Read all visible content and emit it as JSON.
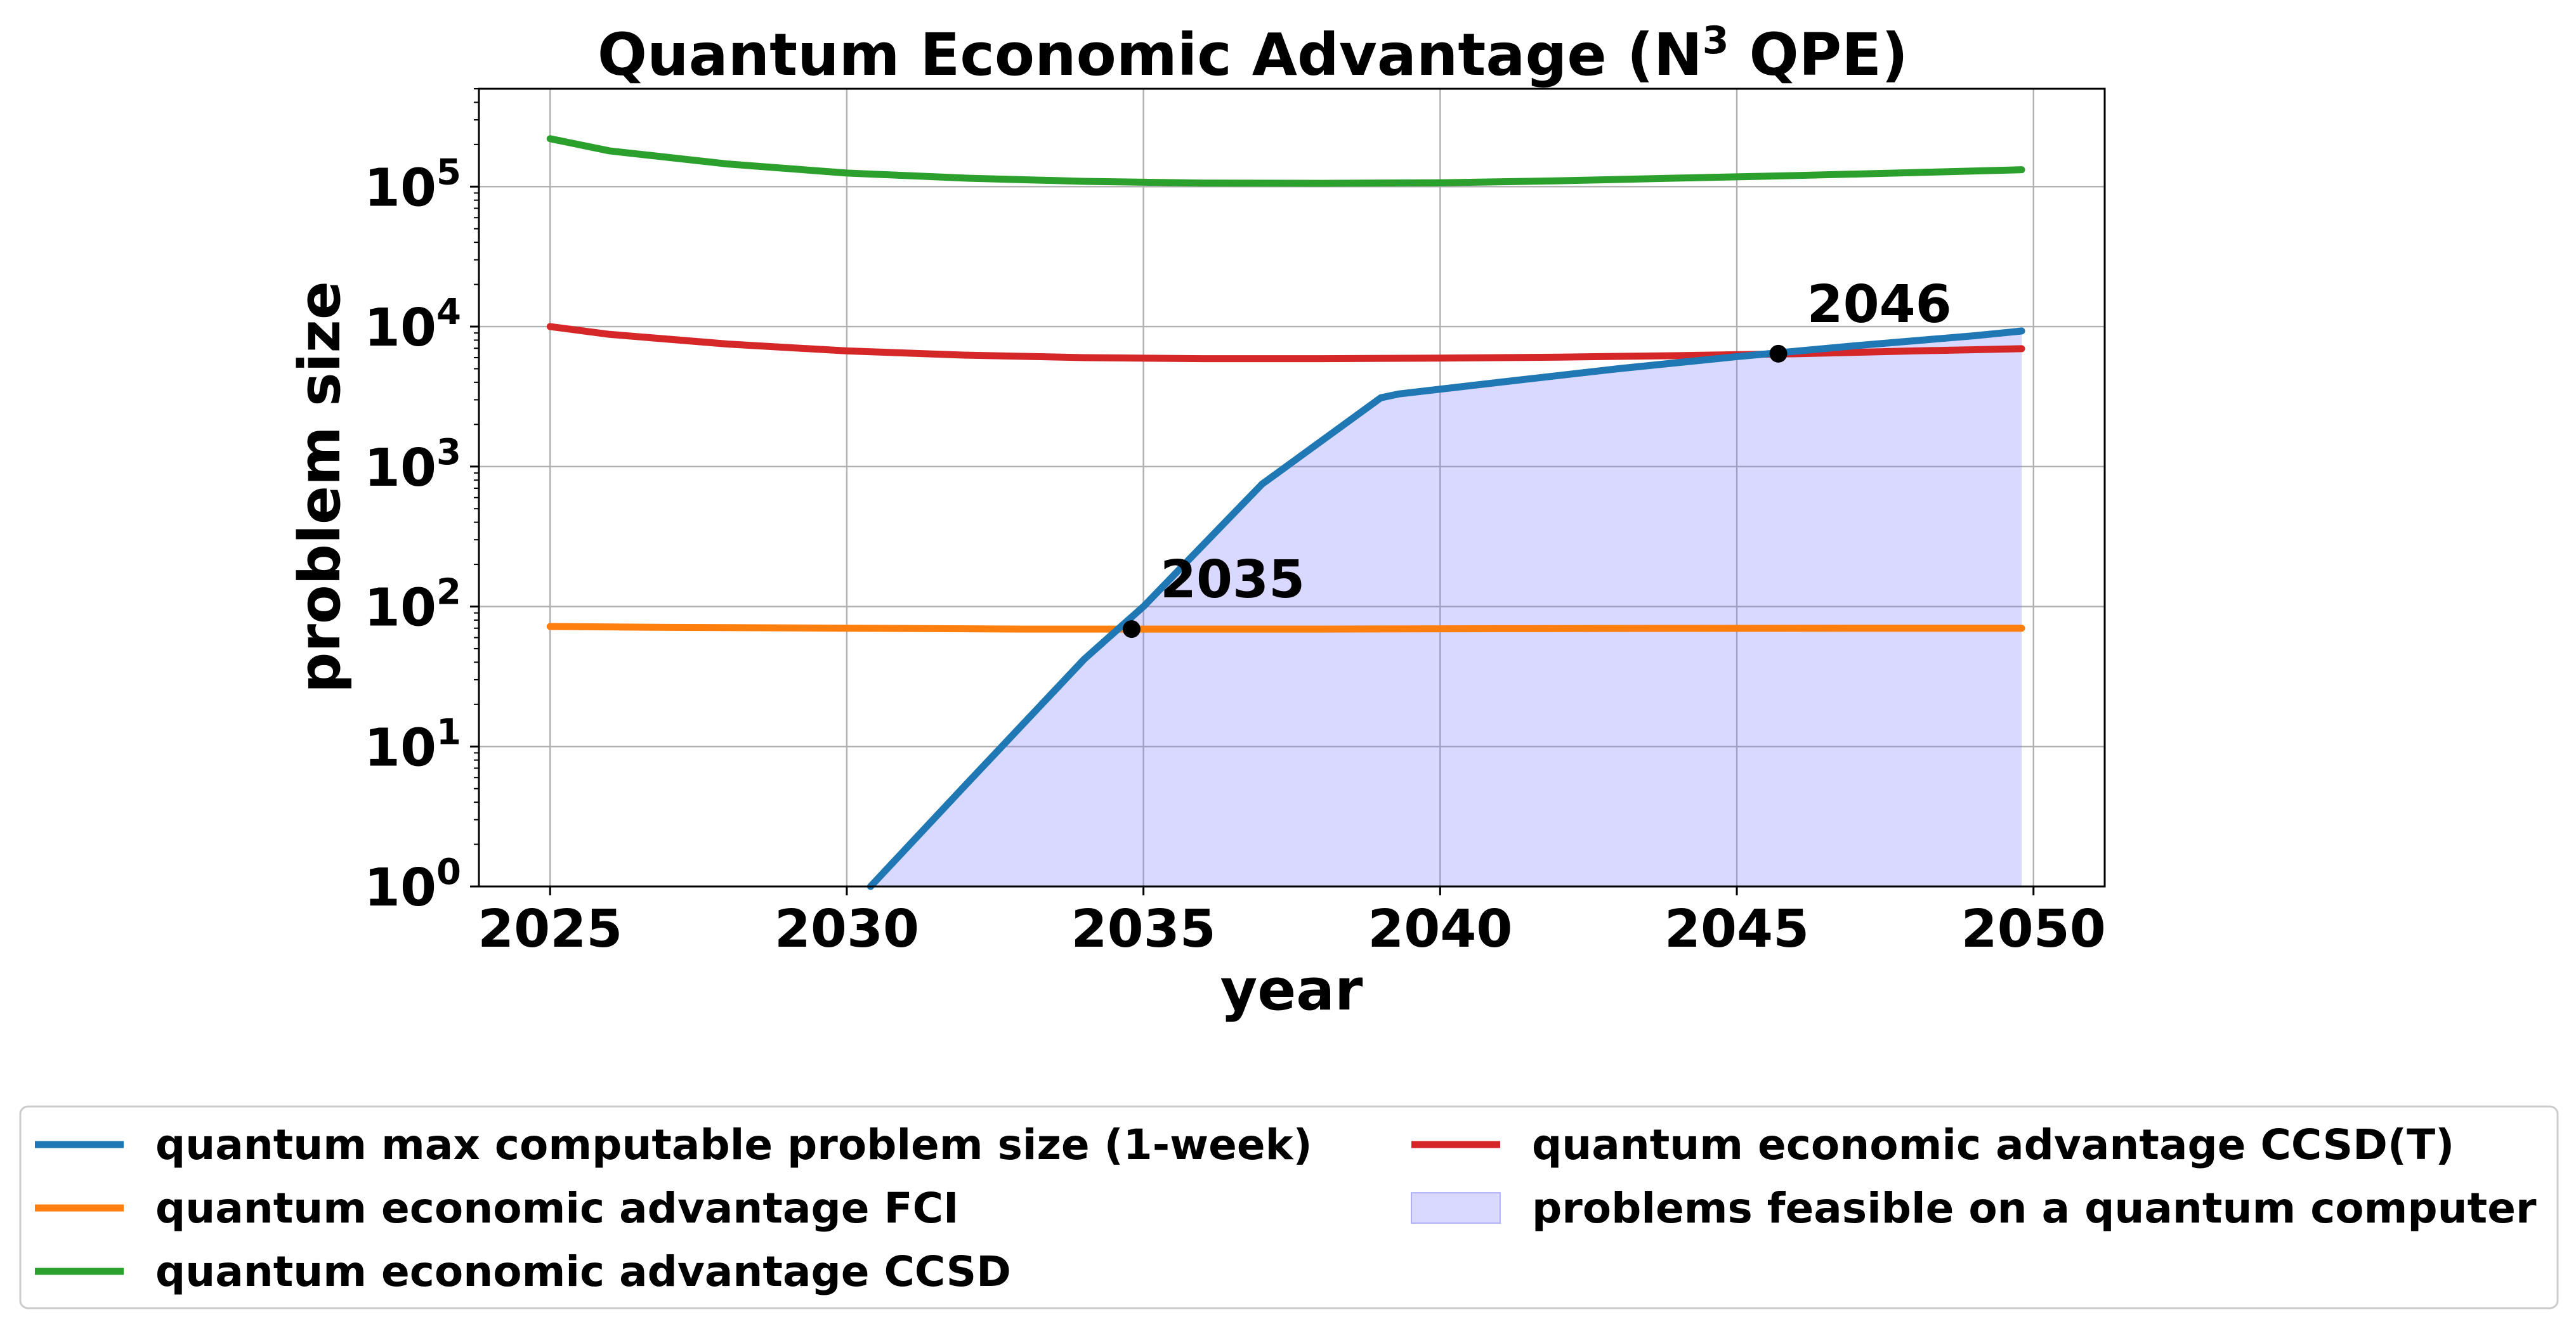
{
  "chart_data": {
    "type": "line",
    "title": "Quantum Economic Advantage (N",
    "title_superscript": "3",
    "title_suffix": " QPE)",
    "xlabel": "year",
    "ylabel": "problem size",
    "xlim": [
      2023.8,
      2051.2
    ],
    "ylim": [
      1,
      500000
    ],
    "yscale": "log",
    "grid": true,
    "legend_position": "below",
    "x_ticks": [
      2025,
      2030,
      2035,
      2040,
      2045,
      2050
    ],
    "x_tick_labels": [
      "2025",
      "2030",
      "2035",
      "2040",
      "2045",
      "2050"
    ],
    "y_ticks": [
      1,
      10,
      100,
      1000,
      10000,
      100000
    ],
    "y_tick_labels": [
      {
        "base": "10",
        "exp": "0"
      },
      {
        "base": "10",
        "exp": "1"
      },
      {
        "base": "10",
        "exp": "2"
      },
      {
        "base": "10",
        "exp": "3"
      },
      {
        "base": "10",
        "exp": "4"
      },
      {
        "base": "10",
        "exp": "5"
      }
    ],
    "series": [
      {
        "key": "qmax",
        "name": "quantum max computable problem size (1-week)",
        "color": "#1f77b4",
        "x": [
          2030.4,
          2032,
          2034,
          2035,
          2037,
          2039,
          2039.3,
          2041,
          2043,
          2045,
          2047,
          2049,
          2049.8
        ],
        "y": [
          1,
          5.3,
          42,
          100,
          750,
          3100,
          3300,
          4000,
          5000,
          6100,
          7300,
          8600,
          9300
        ]
      },
      {
        "key": "fci",
        "name": "quantum economic advantage FCI",
        "color": "#ff7f0e",
        "x": [
          2025,
          2027,
          2030,
          2033,
          2035,
          2038,
          2041,
          2044,
          2047,
          2049.8
        ],
        "y": [
          72,
          71,
          70,
          69,
          69,
          69,
          69.5,
          69.8,
          70,
          70
        ]
      },
      {
        "key": "ccsd",
        "name": "quantum economic advantage CCSD",
        "color": "#2ca02c",
        "x": [
          2025,
          2026,
          2028,
          2030,
          2032,
          2034,
          2036,
          2038,
          2040,
          2042,
          2044,
          2046,
          2048,
          2049.8
        ],
        "y": [
          220000,
          180000,
          145000,
          125000,
          115000,
          109000,
          106000,
          105500,
          106500,
          110000,
          115000,
          120000,
          126000,
          132000
        ]
      },
      {
        "key": "ccsdt",
        "name": "quantum economic advantage CCSD(T)",
        "color": "#d62728",
        "x": [
          2025,
          2026,
          2028,
          2030,
          2032,
          2034,
          2036,
          2038,
          2040,
          2042,
          2044,
          2046,
          2048,
          2049.8
        ],
        "y": [
          10000,
          8800,
          7500,
          6700,
          6250,
          6000,
          5900,
          5900,
          5950,
          6050,
          6200,
          6400,
          6700,
          6950
        ]
      }
    ],
    "fill": {
      "name": "problems feasible on a quantum computer",
      "color": "#7777ff",
      "opacity": 0.28,
      "under_series": "qmax"
    },
    "annotations": [
      {
        "text": "2035",
        "x": 2034.8,
        "y": 69
      },
      {
        "text": "2046",
        "x": 2045.7,
        "y": 6400
      }
    ]
  }
}
